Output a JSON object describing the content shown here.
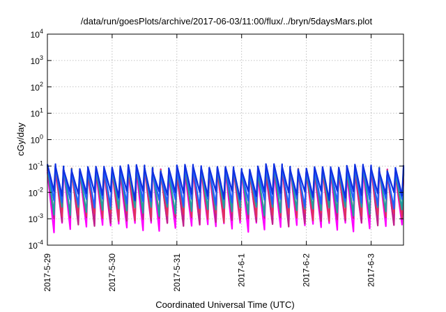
{
  "chart_data": {
    "type": "line",
    "title": "/data/run/goesPlots/archive/2017-06-03/11:00/flux/../bryn/5daysMars.plot",
    "xlabel": "Coordinated Universal Time (UTC)",
    "ylabel": "cGy/day",
    "yscale": "log",
    "ylim": [
      0.0001,
      10000
    ],
    "y_ticks": [
      {
        "base": "10",
        "exp": "-4"
      },
      {
        "base": "10",
        "exp": "-3"
      },
      {
        "base": "10",
        "exp": "-2"
      },
      {
        "base": "10",
        "exp": "-1"
      },
      {
        "base": "10",
        "exp": "0"
      },
      {
        "base": "10",
        "exp": "1"
      },
      {
        "base": "10",
        "exp": "2"
      },
      {
        "base": "10",
        "exp": "3"
      },
      {
        "base": "10",
        "exp": "4"
      }
    ],
    "xlim": [
      "2017-05-29 00:00",
      "2017-06-03 12:00"
    ],
    "x_ticks": [
      "2017-5-29",
      "2017-5-30",
      "2017-5-31",
      "2017-6-1",
      "2017-6-2",
      "2017-6-3"
    ],
    "grid": true,
    "cycles_per_day": 8,
    "series": [
      {
        "color": "#ff00ff",
        "peak": 0.06,
        "trough": 0.0005
      },
      {
        "color": "#c0208a",
        "peak": 0.065,
        "trough": 0.0008
      },
      {
        "color": "#e03060",
        "peak": 0.07,
        "trough": 0.0012
      },
      {
        "color": "#20a0a0",
        "peak": 0.075,
        "trough": 0.002
      },
      {
        "color": "#2060ff",
        "peak": 0.08,
        "trough": 0.004
      },
      {
        "color": "#1030e0",
        "peak": 0.09,
        "trough": 0.008
      }
    ]
  }
}
